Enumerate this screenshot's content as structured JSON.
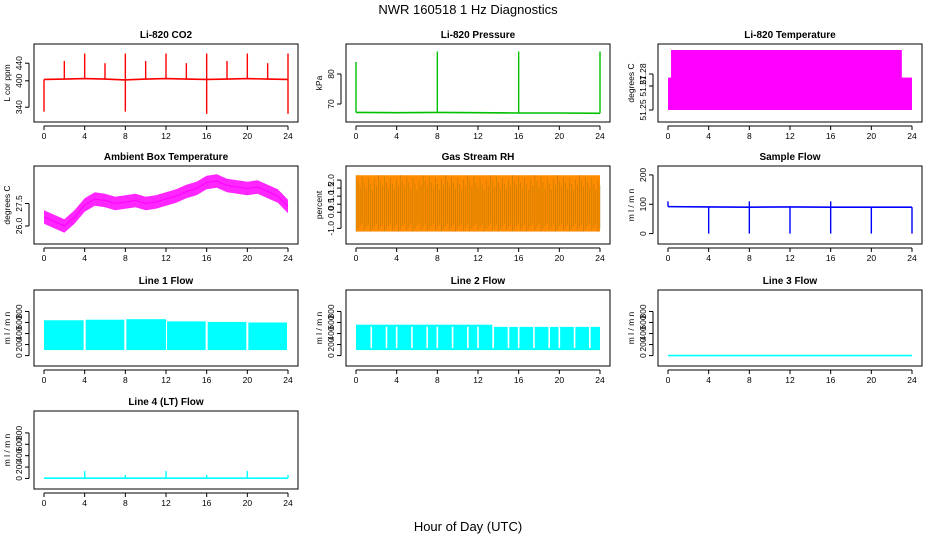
{
  "figure": {
    "title": "NWR  160518  1 Hz Diagnostics",
    "xlabel": "Hour of Day (UTC)"
  },
  "chart_data": [
    {
      "type": "line",
      "title": "Li-820 CO2",
      "ylabel": "L cor ppm",
      "xlim": [
        0,
        24
      ],
      "ylim": [
        320,
        470
      ],
      "xticks": [
        0,
        4,
        8,
        12,
        16,
        20,
        24
      ],
      "yticks": [
        340,
        400,
        440
      ],
      "color": "#ff0000",
      "series": [
        {
          "x": [
            0,
            2,
            4,
            6,
            8,
            10,
            12,
            14,
            16,
            18,
            20,
            22,
            24
          ],
          "y": [
            403,
            404,
            405,
            404,
            402,
            404,
            405,
            404,
            403,
            404,
            405,
            404,
            403
          ]
        }
      ],
      "spikes": [
        {
          "x": 0.0,
          "y": 330
        },
        {
          "x": 2.0,
          "y": 445
        },
        {
          "x": 4.0,
          "y": 462
        },
        {
          "x": 6.0,
          "y": 440
        },
        {
          "x": 8.0,
          "y": 462
        },
        {
          "x": 8.0,
          "y": 330
        },
        {
          "x": 10.0,
          "y": 445
        },
        {
          "x": 12.0,
          "y": 462
        },
        {
          "x": 14.0,
          "y": 440
        },
        {
          "x": 16.0,
          "y": 462
        },
        {
          "x": 16.0,
          "y": 325
        },
        {
          "x": 18.0,
          "y": 445
        },
        {
          "x": 20.0,
          "y": 462
        },
        {
          "x": 22.0,
          "y": 440
        },
        {
          "x": 24.0,
          "y": 462
        },
        {
          "x": 24.0,
          "y": 325
        }
      ]
    },
    {
      "type": "line",
      "title": "Li-820 Pressure",
      "ylabel": "kPa",
      "xlim": [
        0,
        24
      ],
      "ylim": [
        66,
        88
      ],
      "xticks": [
        0,
        4,
        8,
        12,
        16,
        20,
        24
      ],
      "yticks": [
        70,
        80
      ],
      "color": "#00c000",
      "series": [
        {
          "x": [
            0,
            4,
            8,
            12,
            16,
            20,
            24
          ],
          "y": [
            67.2,
            67.1,
            67.2,
            67.1,
            67.0,
            67.0,
            66.9
          ]
        }
      ],
      "spikes": [
        {
          "x": 0.0,
          "y": 84
        },
        {
          "x": 8.0,
          "y": 87.5
        },
        {
          "x": 16.0,
          "y": 87.5
        },
        {
          "x": 24.0,
          "y": 87.5
        }
      ]
    },
    {
      "type": "area",
      "title": "Li-820 Temperature",
      "ylabel": "degrees C",
      "xlim": [
        0,
        24
      ],
      "ylim": [
        51.245,
        51.3
      ],
      "xticks": [
        0,
        4,
        8,
        12,
        16,
        20,
        24
      ],
      "yticks": [
        51.25,
        51.27,
        51.28
      ],
      "ytick_labels": [
        "51.25",
        "51.27",
        "51.28"
      ],
      "color": "#ff00ff",
      "bands": [
        {
          "x0": 0.0,
          "x1": 24.0,
          "ymin": 51.25,
          "ymax": 51.277
        },
        {
          "x0": 0.3,
          "x1": 23.0,
          "ymin": 51.25,
          "ymax": 51.3
        }
      ]
    },
    {
      "type": "line",
      "title": "Ambient Box Temperature",
      "ylabel": "degrees C",
      "xlim": [
        0,
        24
      ],
      "ylim": [
        25.2,
        29.6
      ],
      "xticks": [
        0,
        4,
        8,
        12,
        16,
        20,
        24
      ],
      "yticks": [
        26.0,
        27.5
      ],
      "ytick_labels": [
        "26.0",
        "27.5"
      ],
      "color": "#ff00ff",
      "series": [
        {
          "x": [
            0,
            1,
            2,
            3,
            4,
            5,
            6,
            7,
            8,
            9,
            10,
            11,
            12,
            13,
            14,
            15,
            16,
            17,
            18,
            19,
            20,
            21,
            22,
            23,
            24
          ],
          "y": [
            26.6,
            26.3,
            26.0,
            26.6,
            27.4,
            27.8,
            27.7,
            27.5,
            27.6,
            27.7,
            27.5,
            27.6,
            27.8,
            28.0,
            28.3,
            28.5,
            28.9,
            29.0,
            28.7,
            28.6,
            28.5,
            28.6,
            28.3,
            28.0,
            27.3
          ]
        }
      ],
      "band_halfwidth": 0.45
    },
    {
      "type": "area",
      "title": "Gas Stream RH",
      "ylabel": "percent",
      "xlim": [
        0,
        24
      ],
      "ylim": [
        -1.6,
        2.5
      ],
      "xticks": [
        0,
        4,
        8,
        12,
        16,
        20,
        24
      ],
      "yticks": [
        -1.0,
        0.0,
        0.5,
        1.0,
        1.5,
        2.0
      ],
      "ytick_labels": [
        "-1.0",
        "0.0",
        "0.5",
        "1.0",
        "1.5",
        "2.0"
      ],
      "color": "#ff8c00",
      "bands": [
        {
          "x0": 0.0,
          "x1": 24.0,
          "ymin": -1.2,
          "ymax": 2.3
        }
      ]
    },
    {
      "type": "line",
      "title": "Sample Flow",
      "ylabel": "m l / m n",
      "xlim": [
        0,
        24
      ],
      "ylim": [
        -15,
        210
      ],
      "xticks": [
        0,
        4,
        8,
        12,
        16,
        20,
        24
      ],
      "yticks": [
        0,
        100,
        200
      ],
      "color": "#0000ff",
      "series": [
        {
          "x": [
            0,
            4,
            8,
            12,
            16,
            20,
            24
          ],
          "y": [
            92,
            91,
            90,
            91,
            90,
            90,
            90
          ]
        }
      ],
      "spikes": [
        {
          "x": 0.0,
          "y": 110
        },
        {
          "x": 4.0,
          "y": 0
        },
        {
          "x": 8.0,
          "y": 0
        },
        {
          "x": 8.0,
          "y": 110
        },
        {
          "x": 12.0,
          "y": 0
        },
        {
          "x": 16.0,
          "y": 0
        },
        {
          "x": 16.0,
          "y": 110
        },
        {
          "x": 20.0,
          "y": 0
        },
        {
          "x": 24.0,
          "y": 0
        }
      ]
    },
    {
      "type": "area",
      "title": "Line 1 Flow",
      "ylabel": "m l / m n",
      "xlim": [
        0,
        24
      ],
      "ylim": [
        -80,
        1080
      ],
      "xticks": [
        0,
        4,
        8,
        12,
        16,
        20,
        24
      ],
      "yticks": [
        0,
        200,
        400,
        600,
        800
      ],
      "color": "#00ffff",
      "bands": [
        {
          "x0": 0.0,
          "x1": 3.9,
          "ymin": 100,
          "ymax": 640
        },
        {
          "x0": 4.1,
          "x1": 7.9,
          "ymin": 100,
          "ymax": 650
        },
        {
          "x0": 8.1,
          "x1": 12.0,
          "ymin": 100,
          "ymax": 660
        },
        {
          "x0": 12.1,
          "x1": 15.9,
          "ymin": 100,
          "ymax": 620
        },
        {
          "x0": 16.1,
          "x1": 19.9,
          "ymin": 100,
          "ymax": 610
        },
        {
          "x0": 20.1,
          "x1": 23.9,
          "ymin": 100,
          "ymax": 600
        }
      ]
    },
    {
      "type": "area",
      "title": "Line 2 Flow",
      "ylabel": "m l / m n",
      "xlim": [
        0,
        24
      ],
      "ylim": [
        -80,
        1080
      ],
      "xticks": [
        0,
        4,
        8,
        12,
        16,
        20,
        24
      ],
      "yticks": [
        0,
        200,
        400,
        600,
        800
      ],
      "color": "#00ffff",
      "bands": [
        {
          "x0": 0.0,
          "x1": 13.4,
          "ymin": 100,
          "ymax": 560
        },
        {
          "x0": 13.4,
          "x1": 24.0,
          "ymin": 100,
          "ymax": 520
        }
      ],
      "gaps": [
        1.5,
        3.0,
        4.0,
        5.5,
        7.0,
        8.0,
        9.5,
        11.0,
        12.0,
        13.5,
        15.0,
        16.0,
        17.5,
        19.0,
        20.0,
        21.5,
        23.0
      ]
    },
    {
      "type": "line",
      "title": "Line 3 Flow",
      "ylabel": "m l / m n",
      "xlim": [
        0,
        24
      ],
      "ylim": [
        -80,
        1080
      ],
      "xticks": [
        0,
        4,
        8,
        12,
        16,
        20,
        24
      ],
      "yticks": [
        0,
        200,
        400,
        600,
        800
      ],
      "color": "#00ffff",
      "series": [
        {
          "x": [
            0,
            24
          ],
          "y": [
            0,
            0
          ]
        }
      ]
    },
    {
      "type": "line",
      "title": "Line 4 (LT) Flow",
      "ylabel": "m l / m n",
      "xlim": [
        0,
        24
      ],
      "ylim": [
        -80,
        1080
      ],
      "xticks": [
        0,
        4,
        8,
        12,
        16,
        20,
        24
      ],
      "yticks": [
        0,
        200,
        400,
        600,
        800
      ],
      "color": "#00ffff",
      "series": [
        {
          "x": [
            0,
            24
          ],
          "y": [
            5,
            5
          ]
        }
      ],
      "spikes": [
        {
          "x": 4.0,
          "y": 130
        },
        {
          "x": 8.0,
          "y": 60
        },
        {
          "x": 12.0,
          "y": 130
        },
        {
          "x": 16.0,
          "y": 60
        },
        {
          "x": 20.0,
          "y": 130
        },
        {
          "x": 24.0,
          "y": 60
        }
      ]
    }
  ]
}
